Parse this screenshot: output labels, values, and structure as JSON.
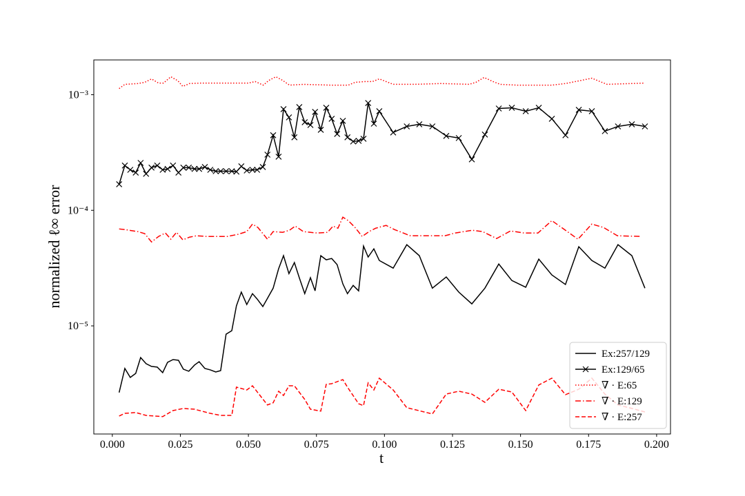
{
  "chart_data": {
    "type": "line",
    "xlabel": "t",
    "ylabel": "normalized ℓ∞ error",
    "xlim": [
      -0.0068,
      0.2051
    ],
    "ylim": [
      1.16e-06,
      0.002
    ],
    "log_y": true,
    "legend": "lower right",
    "xticks": [
      {
        "value": 0,
        "label": "0.000"
      },
      {
        "value": 0.025,
        "label": "0.025"
      },
      {
        "value": 0.05,
        "label": "0.050"
      },
      {
        "value": 0.075,
        "label": "0.075"
      },
      {
        "value": 0.1,
        "label": "0.100"
      },
      {
        "value": 0.125,
        "label": "0.125"
      },
      {
        "value": 0.15,
        "label": "0.150"
      },
      {
        "value": 0.175,
        "label": "0.175"
      },
      {
        "value": 0.2,
        "label": "0.200"
      }
    ],
    "yticks": [
      {
        "value": 1e-05,
        "label": "10⁻⁵"
      },
      {
        "value": 0.0001,
        "label": "10⁻⁴"
      },
      {
        "value": 0.001,
        "label": "10⁻³"
      }
    ],
    "series": [
      {
        "name": "Ex:257/129",
        "color": "#000000",
        "linestyle": "solid",
        "marker": "none",
        "x": [
          0.0025,
          0.0046,
          0.0066,
          0.0086,
          0.0104,
          0.0124,
          0.0144,
          0.0165,
          0.0185,
          0.0203,
          0.0223,
          0.0243,
          0.0261,
          0.0281,
          0.0302,
          0.0319,
          0.034,
          0.036,
          0.038,
          0.0398,
          0.0418,
          0.0439,
          0.0456,
          0.0474,
          0.0494,
          0.0515,
          0.0532,
          0.0553,
          0.057,
          0.0591,
          0.0611,
          0.0629,
          0.0649,
          0.0669,
          0.0687,
          0.0707,
          0.0728,
          0.0745,
          0.0766,
          0.0786,
          0.0806,
          0.0826,
          0.0847,
          0.0864,
          0.0885,
          0.0905,
          0.0923,
          0.094,
          0.0961,
          0.0981,
          0.1032,
          0.1082,
          0.1128,
          0.1176,
          0.1227,
          0.1273,
          0.1321,
          0.1369,
          0.142,
          0.1468,
          0.1519,
          0.1567,
          0.1615,
          0.1665,
          0.1714,
          0.1762,
          0.181,
          0.1858,
          0.1909,
          0.1957
        ],
        "values": [
          2.65e-06,
          4.28e-06,
          3.58e-06,
          3.88e-06,
          5.32e-06,
          4.71e-06,
          4.46e-06,
          4.4e-06,
          3.94e-06,
          4.84e-06,
          5.11e-06,
          5.04e-06,
          4.22e-06,
          4.05e-06,
          4.58e-06,
          4.9e-06,
          4.28e-06,
          4.16e-06,
          3.99e-06,
          4.1e-06,
          8.48e-06,
          9.09e-06,
          1.49e-05,
          1.96e-05,
          1.53e-05,
          1.9e-05,
          1.71e-05,
          1.47e-05,
          1.73e-05,
          2.12e-05,
          3.12e-05,
          4.05e-05,
          2.83e-05,
          3.53e-05,
          2.61e-05,
          1.9e-05,
          2.61e-05,
          2.01e-05,
          4.05e-05,
          3.73e-05,
          3.83e-05,
          3.39e-05,
          2.31e-05,
          1.9e-05,
          2.24e-05,
          2.01e-05,
          4.9e-05,
          3.94e-05,
          4.64e-05,
          3.68e-05,
          3.16e-05,
          5.04e-05,
          4.05e-05,
          2.12e-05,
          2.65e-05,
          1.96e-05,
          1.55e-05,
          2.12e-05,
          3.43e-05,
          2.47e-05,
          2.16e-05,
          3.78e-05,
          2.76e-05,
          2.28e-05,
          4.84e-05,
          3.68e-05,
          3.16e-05,
          5.04e-05,
          4.05e-05,
          2.12e-05
        ]
      },
      {
        "name": "Ex:129/65",
        "color": "#000000",
        "linestyle": "solid",
        "marker": "x",
        "x": [
          0.0025,
          0.0046,
          0.0066,
          0.0086,
          0.0104,
          0.0124,
          0.0144,
          0.0165,
          0.0185,
          0.0203,
          0.0223,
          0.0243,
          0.0261,
          0.0281,
          0.0302,
          0.0319,
          0.034,
          0.036,
          0.038,
          0.0398,
          0.0418,
          0.0439,
          0.0456,
          0.0474,
          0.0494,
          0.0515,
          0.0532,
          0.0553,
          0.057,
          0.0591,
          0.0611,
          0.0629,
          0.0649,
          0.0669,
          0.0687,
          0.0707,
          0.0728,
          0.0745,
          0.0766,
          0.0786,
          0.0806,
          0.0826,
          0.0847,
          0.0864,
          0.0885,
          0.0905,
          0.0923,
          0.094,
          0.0961,
          0.0981,
          0.1032,
          0.1082,
          0.1128,
          0.1176,
          0.1227,
          0.1273,
          0.1321,
          0.1369,
          0.142,
          0.1468,
          0.1519,
          0.1567,
          0.1615,
          0.1665,
          0.1714,
          0.1762,
          0.181,
          0.1858,
          0.1909,
          0.1957
        ],
        "values": [
          0.000168,
          0.000244,
          0.000224,
          0.000212,
          0.000257,
          0.000207,
          0.000234,
          0.000244,
          0.000224,
          0.000228,
          0.000244,
          0.000212,
          0.000234,
          0.000234,
          0.000228,
          0.000228,
          0.000237,
          0.000224,
          0.000218,
          0.000218,
          0.000218,
          0.000218,
          0.000216,
          0.00024,
          0.000221,
          0.000224,
          0.000224,
          0.000237,
          0.000303,
          0.000446,
          0.000291,
          0.00075,
          0.000637,
          0.000428,
          0.000782,
          0.000578,
          0.000547,
          0.00071,
          0.000497,
          0.000771,
          0.000619,
          0.000458,
          0.000594,
          0.000428,
          0.000394,
          0.000399,
          0.000416,
          0.000848,
          0.000562,
          0.00072,
          0.000471,
          0.000532,
          0.000555,
          0.000532,
          0.00044,
          0.000422,
          0.000276,
          0.000452,
          0.00076,
          0.000771,
          0.00072,
          0.000771,
          0.000619,
          0.000446,
          0.00074,
          0.00072,
          0.000484,
          0.000532,
          0.000555,
          0.000532
        ]
      },
      {
        "name": "∇ · E:65",
        "color": "#ff0000",
        "linestyle": "dotted",
        "marker": "none",
        "x": [
          0.0025,
          0.0046,
          0.0094,
          0.0119,
          0.0144,
          0.017,
          0.0188,
          0.0215,
          0.0241,
          0.0259,
          0.0284,
          0.0322,
          0.0398,
          0.0499,
          0.0525,
          0.0555,
          0.0575,
          0.0601,
          0.0626,
          0.0651,
          0.0702,
          0.0804,
          0.0867,
          0.0892,
          0.093,
          0.0956,
          0.0981,
          0.1006,
          0.1032,
          0.1108,
          0.1209,
          0.1311,
          0.1336,
          0.1366,
          0.1399,
          0.1425,
          0.1488,
          0.1615,
          0.1665,
          0.1716,
          0.1762,
          0.1792,
          0.1818,
          0.1952
        ],
        "values": [
          0.00113,
          0.00123,
          0.00125,
          0.00128,
          0.00137,
          0.00126,
          0.00126,
          0.00143,
          0.00132,
          0.00118,
          0.00125,
          0.00126,
          0.00126,
          0.00126,
          0.0013,
          0.00121,
          0.00133,
          0.00143,
          0.00133,
          0.00121,
          0.00123,
          0.00121,
          0.00121,
          0.00128,
          0.0013,
          0.0013,
          0.00137,
          0.0013,
          0.00123,
          0.00123,
          0.00125,
          0.00123,
          0.00128,
          0.00141,
          0.0013,
          0.00123,
          0.00121,
          0.00121,
          0.00125,
          0.00132,
          0.00139,
          0.0013,
          0.00123,
          0.00126
        ]
      },
      {
        "name": "∇ · E:129",
        "color": "#ff0000",
        "linestyle": "dashdot",
        "marker": "none",
        "x": [
          0.0025,
          0.0046,
          0.0094,
          0.0119,
          0.0144,
          0.017,
          0.0195,
          0.0215,
          0.0236,
          0.0259,
          0.0284,
          0.0309,
          0.0347,
          0.0423,
          0.0461,
          0.0494,
          0.0515,
          0.0535,
          0.057,
          0.0591,
          0.0626,
          0.0651,
          0.0672,
          0.0702,
          0.0753,
          0.0791,
          0.0811,
          0.0829,
          0.0847,
          0.0867,
          0.0892,
          0.0918,
          0.0943,
          0.0968,
          0.1006,
          0.1037,
          0.1095,
          0.1222,
          0.126,
          0.1323,
          0.1361,
          0.1412,
          0.1463,
          0.1513,
          0.1564,
          0.1615,
          0.1665,
          0.1711,
          0.1762,
          0.1805,
          0.1856,
          0.1944
        ],
        "values": [
          6.9e-05,
          6.81e-05,
          6.54e-05,
          6.28e-05,
          5.32e-05,
          5.94e-05,
          6.36e-05,
          5.62e-05,
          6.45e-05,
          5.55e-05,
          5.86e-05,
          6.02e-05,
          5.94e-05,
          5.94e-05,
          6.19e-05,
          6.54e-05,
          7.6e-05,
          7.1e-05,
          5.62e-05,
          6.54e-05,
          6.45e-05,
          6.72e-05,
          7.3e-05,
          6.54e-05,
          6.36e-05,
          6.45e-05,
          7.3e-05,
          7e-05,
          8.72e-05,
          8.14e-05,
          7.1e-05,
          5.94e-05,
          6.54e-05,
          7e-05,
          7.4e-05,
          6.81e-05,
          6.02e-05,
          6.02e-05,
          6.36e-05,
          6.72e-05,
          6.54e-05,
          5.7e-05,
          6.63e-05,
          6.36e-05,
          6.36e-05,
          8.14e-05,
          6.72e-05,
          5.62e-05,
          7.6e-05,
          7.1e-05,
          6.02e-05,
          5.94e-05
        ]
      },
      {
        "name": "∇ · E:257",
        "color": "#ff0000",
        "linestyle": "dashed",
        "marker": "none",
        "x": [
          0.0025,
          0.0046,
          0.0086,
          0.0124,
          0.0185,
          0.0223,
          0.0261,
          0.0302,
          0.036,
          0.0398,
          0.0439,
          0.0456,
          0.0494,
          0.0515,
          0.057,
          0.0591,
          0.0611,
          0.0629,
          0.0649,
          0.0669,
          0.0707,
          0.0728,
          0.0766,
          0.0786,
          0.0806,
          0.0847,
          0.0864,
          0.0905,
          0.0923,
          0.094,
          0.0961,
          0.0981,
          0.1032,
          0.1082,
          0.1176,
          0.1227,
          0.1273,
          0.1321,
          0.1369,
          0.142,
          0.1468,
          0.1519,
          0.1567,
          0.1615,
          0.1665,
          0.1714,
          0.1762,
          0.181,
          0.1858,
          0.1909,
          0.1957
        ],
        "values": [
          1.66e-06,
          1.75e-06,
          1.78e-06,
          1.68e-06,
          1.64e-06,
          1.85e-06,
          1.93e-06,
          1.9e-06,
          1.75e-06,
          1.68e-06,
          1.68e-06,
          2.95e-06,
          2.79e-06,
          3.03e-06,
          2.07e-06,
          2.16e-06,
          2.72e-06,
          2.5e-06,
          3.03e-06,
          3.03e-06,
          2.31e-06,
          1.9e-06,
          1.83e-06,
          3.12e-06,
          3.16e-06,
          3.43e-06,
          2.95e-06,
          2.12e-06,
          2.04e-06,
          3.21e-06,
          2.79e-06,
          3.53e-06,
          2.79e-06,
          1.96e-06,
          1.73e-06,
          2.57e-06,
          2.72e-06,
          2.57e-06,
          2.18e-06,
          2.83e-06,
          2.68e-06,
          1.85e-06,
          3.08e-06,
          3.53e-06,
          2.54e-06,
          2.83e-06,
          3.53e-06,
          2.57e-06,
          2.07e-06,
          1.93e-06,
          1.8e-06
        ]
      }
    ]
  }
}
